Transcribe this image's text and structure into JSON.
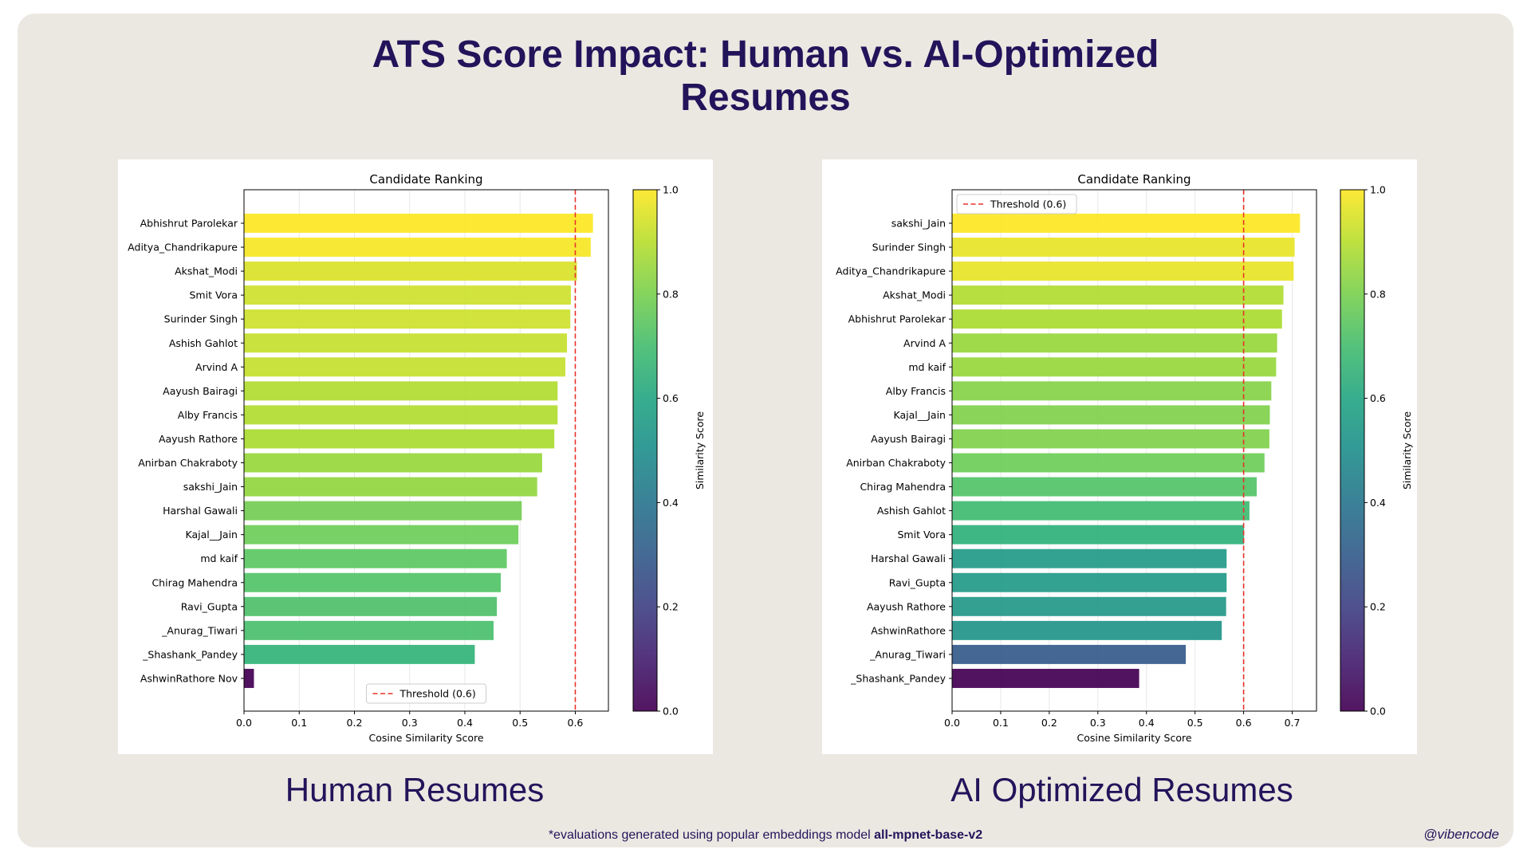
{
  "title": "ATS Score Impact: Human vs. AI-Optimized Resumes",
  "footnote": {
    "prefix": "*evaluations generated using popular embeddings model ",
    "model": "all-mpnet-base-v2"
  },
  "handle": "@vibencode",
  "colors": {
    "card_background": "#ebe8e2",
    "title": "#22145a",
    "threshold_line": "#e8312a"
  },
  "charts": [
    {
      "caption": "Human Resumes",
      "legend_position": "bottom-center"
    },
    {
      "caption": "AI Optimized Resumes",
      "legend_position": "top-left"
    }
  ],
  "chart_data": [
    {
      "type": "bar",
      "orientation": "horizontal",
      "title": "Candidate Ranking",
      "xlabel": "Cosine Similarity Score",
      "ylabel": "",
      "xlim": [
        0,
        0.66
      ],
      "xticks": [
        "0.0",
        "0.1",
        "0.2",
        "0.3",
        "0.4",
        "0.5",
        "0.6"
      ],
      "grid": "vertical",
      "threshold": {
        "value": 0.6,
        "label": "Threshold (0.6)"
      },
      "colorbar": {
        "label": "Similarity Score",
        "range": [
          0,
          1
        ],
        "ticks": [
          "0.0",
          "0.2",
          "0.4",
          "0.6",
          "0.8",
          "1.0"
        ],
        "colormap": "viridis"
      },
      "categories": [
        "Abhishrut Parolekar",
        "Aditya_Chandrikapure",
        "Akshat_Modi",
        "Smit Vora",
        "Surinder Singh",
        "Ashish Gahlot",
        "Arvind A",
        "Aayush Bairagi",
        "Alby Francis",
        "Aayush Rathore",
        "Anirban Chakraboty",
        "sakshi_Jain",
        "Harshal Gawali",
        "Kajal__Jain",
        "md kaif",
        "Chirag Mahendra",
        "Ravi_Gupta",
        "_Anurag_Tiwari",
        "_Shashank_Pandey",
        "AshwinRathore Nov"
      ],
      "values": [
        0.632,
        0.628,
        0.603,
        0.592,
        0.591,
        0.585,
        0.582,
        0.568,
        0.568,
        0.562,
        0.54,
        0.531,
        0.503,
        0.497,
        0.476,
        0.465,
        0.458,
        0.452,
        0.418,
        0.018
      ],
      "color_scores": [
        1.0,
        0.99,
        0.95,
        0.93,
        0.93,
        0.92,
        0.92,
        0.89,
        0.89,
        0.88,
        0.85,
        0.84,
        0.79,
        0.78,
        0.75,
        0.73,
        0.72,
        0.71,
        0.66,
        0.0
      ]
    },
    {
      "type": "bar",
      "orientation": "horizontal",
      "title": "Candidate Ranking",
      "xlabel": "Cosine Similarity Score",
      "ylabel": "",
      "xlim": [
        0,
        0.75
      ],
      "xticks": [
        "0.0",
        "0.1",
        "0.2",
        "0.3",
        "0.4",
        "0.5",
        "0.6",
        "0.7"
      ],
      "grid": "vertical",
      "threshold": {
        "value": 0.6,
        "label": "Threshold (0.6)"
      },
      "colorbar": {
        "label": "Similarity Score",
        "range": [
          0,
          1
        ],
        "ticks": [
          "0.0",
          "0.2",
          "0.4",
          "0.6",
          "0.8",
          "1.0"
        ],
        "colormap": "viridis"
      },
      "categories": [
        "sakshi_Jain",
        "Surinder Singh",
        "Aditya_Chandrikapure",
        "Akshat_Modi",
        "Abhishrut Parolekar",
        "Arvind A",
        "md kaif",
        "Alby Francis",
        "Kajal__Jain",
        "Aayush Bairagi",
        "Anirban Chakraboty",
        "Chirag Mahendra",
        "Ashish Gahlot",
        "Smit Vora",
        "Harshal Gawali",
        "Ravi_Gupta",
        "Aayush Rathore",
        "AshwinRathore",
        "_Anurag_Tiwari",
        "_Shashank_Pandey"
      ],
      "values": [
        0.716,
        0.705,
        0.703,
        0.682,
        0.679,
        0.669,
        0.667,
        0.657,
        0.654,
        0.653,
        0.643,
        0.627,
        0.612,
        0.601,
        0.565,
        0.565,
        0.564,
        0.555,
        0.481,
        0.385
      ],
      "color_scores": [
        1.0,
        0.97,
        0.97,
        0.89,
        0.88,
        0.85,
        0.85,
        0.82,
        0.81,
        0.81,
        0.78,
        0.73,
        0.69,
        0.65,
        0.55,
        0.55,
        0.54,
        0.52,
        0.29,
        0.0
      ]
    }
  ]
}
